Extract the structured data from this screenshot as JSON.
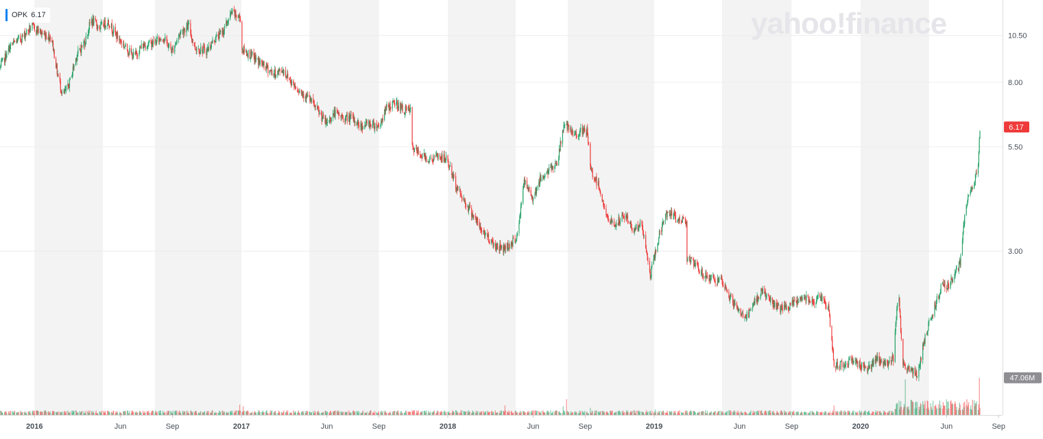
{
  "chart": {
    "symbol": "OPK",
    "last_value_text": "6.17",
    "watermark": "yahoo!finance",
    "volume_badge": "47.06M"
  },
  "colors": {
    "up": "#26a269",
    "down": "#ee3a3a",
    "legend_accent": "#0081f2",
    "price_badge": "#ee3a3a",
    "volume_badge": "#8e8e93",
    "band": "#f3f3f3"
  },
  "chart_data": {
    "type": "candlestick",
    "title": "",
    "xlabel": "",
    "ylabel": "",
    "scale": "log",
    "ylim": [
      1.2,
      12.5
    ],
    "ytick_labels": [
      "10.50",
      "8.00",
      "5.50",
      "3.00"
    ],
    "yticks": [
      10.5,
      8.0,
      5.5,
      3.0
    ],
    "xlim": [
      "2015-11-01",
      "2020-09-08"
    ],
    "xtick_labels": [
      {
        "label": "2016",
        "date": "2016-01-01",
        "major": true
      },
      {
        "label": "Jun",
        "date": "2016-06-01",
        "major": false
      },
      {
        "label": "Sep",
        "date": "2016-09-01",
        "major": false
      },
      {
        "label": "2017",
        "date": "2017-01-01",
        "major": true
      },
      {
        "label": "Jun",
        "date": "2017-06-01",
        "major": false
      },
      {
        "label": "Sep",
        "date": "2017-09-01",
        "major": false
      },
      {
        "label": "2018",
        "date": "2018-01-01",
        "major": true
      },
      {
        "label": "Jun",
        "date": "2018-06-01",
        "major": false
      },
      {
        "label": "Sep",
        "date": "2018-09-01",
        "major": false
      },
      {
        "label": "2019",
        "date": "2019-01-01",
        "major": true
      },
      {
        "label": "Jun",
        "date": "2019-06-01",
        "major": false
      },
      {
        "label": "Sep",
        "date": "2019-09-01",
        "major": false
      },
      {
        "label": "2020",
        "date": "2020-01-01",
        "major": true
      },
      {
        "label": "Jun",
        "date": "2020-06-01",
        "major": false
      },
      {
        "label": "Sep",
        "date": "2020-09-01",
        "major": false
      }
    ],
    "shaded_bands": [
      [
        "2016-01-01",
        "2016-05-01"
      ],
      [
        "2016-08-01",
        "2017-01-01"
      ],
      [
        "2017-05-01",
        "2017-09-01"
      ],
      [
        "2018-01-01",
        "2018-05-01"
      ],
      [
        "2018-08-01",
        "2019-01-01"
      ],
      [
        "2019-05-01",
        "2019-09-01"
      ],
      [
        "2020-01-01",
        "2020-05-01"
      ]
    ],
    "series": [
      {
        "kind": "price",
        "points": [
          [
            "2015-11-01",
            8.7
          ],
          [
            "2015-11-20",
            9.9
          ],
          [
            "2015-12-10",
            10.4
          ],
          [
            "2015-12-28",
            11.1
          ],
          [
            "2016-01-15",
            10.6
          ],
          [
            "2016-01-31",
            10.4
          ],
          [
            "2016-02-10",
            8.5
          ],
          [
            "2016-02-20",
            7.4
          ],
          [
            "2016-03-01",
            7.8
          ],
          [
            "2016-03-15",
            9.3
          ],
          [
            "2016-03-31",
            10.2
          ],
          [
            "2016-04-10",
            11.5
          ],
          [
            "2016-04-25",
            11.0
          ],
          [
            "2016-05-10",
            11.4
          ],
          [
            "2016-05-25",
            10.5
          ],
          [
            "2016-06-10",
            9.8
          ],
          [
            "2016-06-25",
            9.3
          ],
          [
            "2016-07-10",
            9.9
          ],
          [
            "2016-07-31",
            10.1
          ],
          [
            "2016-08-15",
            10.4
          ],
          [
            "2016-08-31",
            9.6
          ],
          [
            "2016-09-15",
            10.7
          ],
          [
            "2016-09-30",
            11.1
          ],
          [
            "2016-10-10",
            9.8
          ],
          [
            "2016-10-31",
            9.6
          ],
          [
            "2016-11-15",
            10.3
          ],
          [
            "2016-11-30",
            10.8
          ],
          [
            "2016-12-15",
            12.0
          ],
          [
            "2016-12-30",
            11.6
          ],
          [
            "2017-01-02",
            9.7
          ],
          [
            "2017-01-20",
            9.3
          ],
          [
            "2017-02-10",
            8.8
          ],
          [
            "2017-02-28",
            8.4
          ],
          [
            "2017-03-15",
            8.6
          ],
          [
            "2017-03-31",
            8.0
          ],
          [
            "2017-04-15",
            7.6
          ],
          [
            "2017-04-30",
            7.3
          ],
          [
            "2017-05-15",
            6.8
          ],
          [
            "2017-05-31",
            6.3
          ],
          [
            "2017-06-15",
            6.7
          ],
          [
            "2017-06-30",
            6.5
          ],
          [
            "2017-07-15",
            6.5
          ],
          [
            "2017-07-31",
            6.2
          ],
          [
            "2017-08-15",
            6.3
          ],
          [
            "2017-09-01",
            6.2
          ],
          [
            "2017-09-15",
            6.9
          ],
          [
            "2017-09-30",
            7.1
          ],
          [
            "2017-10-15",
            6.8
          ],
          [
            "2017-10-27",
            6.8
          ],
          [
            "2017-10-28",
            5.5
          ],
          [
            "2017-11-10",
            5.3
          ],
          [
            "2017-11-30",
            5.1
          ],
          [
            "2017-12-15",
            5.2
          ],
          [
            "2017-12-31",
            5.1
          ],
          [
            "2018-01-15",
            4.4
          ],
          [
            "2018-01-31",
            4.0
          ],
          [
            "2018-02-15",
            3.7
          ],
          [
            "2018-02-28",
            3.4
          ],
          [
            "2018-03-10",
            3.3
          ],
          [
            "2018-03-25",
            3.1
          ],
          [
            "2018-04-10",
            3.05
          ],
          [
            "2018-04-25",
            3.15
          ],
          [
            "2018-05-05",
            3.3
          ],
          [
            "2018-05-15",
            4.5
          ],
          [
            "2018-05-31",
            4.1
          ],
          [
            "2018-06-15",
            4.6
          ],
          [
            "2018-06-30",
            4.8
          ],
          [
            "2018-07-15",
            5.1
          ],
          [
            "2018-07-25",
            6.3
          ],
          [
            "2018-08-10",
            5.9
          ],
          [
            "2018-08-25",
            6.0
          ],
          [
            "2018-09-05",
            6.0
          ],
          [
            "2018-09-10",
            4.8
          ],
          [
            "2018-09-25",
            4.4
          ],
          [
            "2018-10-10",
            3.6
          ],
          [
            "2018-10-25",
            3.5
          ],
          [
            "2018-11-10",
            3.7
          ],
          [
            "2018-11-25",
            3.4
          ],
          [
            "2018-12-10",
            3.5
          ],
          [
            "2018-12-25",
            2.6
          ],
          [
            "2019-01-10",
            3.3
          ],
          [
            "2019-01-25",
            3.8
          ],
          [
            "2019-02-10",
            3.6
          ],
          [
            "2019-02-27",
            3.6
          ],
          [
            "2019-02-28",
            2.9
          ],
          [
            "2019-03-15",
            2.75
          ],
          [
            "2019-03-31",
            2.6
          ],
          [
            "2019-04-15",
            2.55
          ],
          [
            "2019-04-30",
            2.5
          ],
          [
            "2019-05-15",
            2.3
          ],
          [
            "2019-05-31",
            2.1
          ],
          [
            "2019-06-15",
            2.05
          ],
          [
            "2019-06-30",
            2.25
          ],
          [
            "2019-07-10",
            2.4
          ],
          [
            "2019-07-25",
            2.25
          ],
          [
            "2019-08-10",
            2.15
          ],
          [
            "2019-08-25",
            2.15
          ],
          [
            "2019-09-10",
            2.25
          ],
          [
            "2019-09-25",
            2.3
          ],
          [
            "2019-10-10",
            2.25
          ],
          [
            "2019-10-25",
            2.3
          ],
          [
            "2019-11-05",
            2.15
          ],
          [
            "2019-11-15",
            1.55
          ],
          [
            "2019-11-30",
            1.55
          ],
          [
            "2019-12-15",
            1.6
          ],
          [
            "2019-12-31",
            1.55
          ],
          [
            "2020-01-15",
            1.52
          ],
          [
            "2020-01-31",
            1.6
          ],
          [
            "2020-02-15",
            1.55
          ],
          [
            "2020-02-28",
            1.62
          ],
          [
            "2020-03-08",
            2.5
          ],
          [
            "2020-03-15",
            1.55
          ],
          [
            "2020-03-31",
            1.5
          ],
          [
            "2020-04-10",
            1.45
          ],
          [
            "2020-04-25",
            1.85
          ],
          [
            "2020-05-10",
            2.15
          ],
          [
            "2020-05-25",
            2.5
          ],
          [
            "2020-06-05",
            2.45
          ],
          [
            "2020-06-15",
            2.6
          ],
          [
            "2020-06-25",
            2.8
          ],
          [
            "2020-07-05",
            3.9
          ],
          [
            "2020-07-15",
            4.3
          ],
          [
            "2020-07-22",
            4.6
          ],
          [
            "2020-07-27",
            4.9
          ],
          [
            "2020-07-29",
            5.9
          ],
          [
            "2020-07-30",
            6.17
          ]
        ]
      },
      {
        "kind": "volume",
        "last_value_text": "47.06M",
        "spikes": [
          [
            "2016-12-29",
            13
          ],
          [
            "2017-01-04",
            11
          ],
          [
            "2017-10-28",
            10
          ],
          [
            "2018-04-12",
            12
          ],
          [
            "2018-07-24",
            11
          ],
          [
            "2018-07-30",
            20
          ],
          [
            "2018-09-10",
            9
          ],
          [
            "2019-01-03",
            7
          ],
          [
            "2019-11-15",
            12
          ],
          [
            "2020-03-08",
            22
          ],
          [
            "2020-03-20",
            45
          ],
          [
            "2020-05-10",
            25
          ],
          [
            "2020-06-15",
            14
          ],
          [
            "2020-07-29",
            47.06
          ]
        ]
      }
    ]
  }
}
